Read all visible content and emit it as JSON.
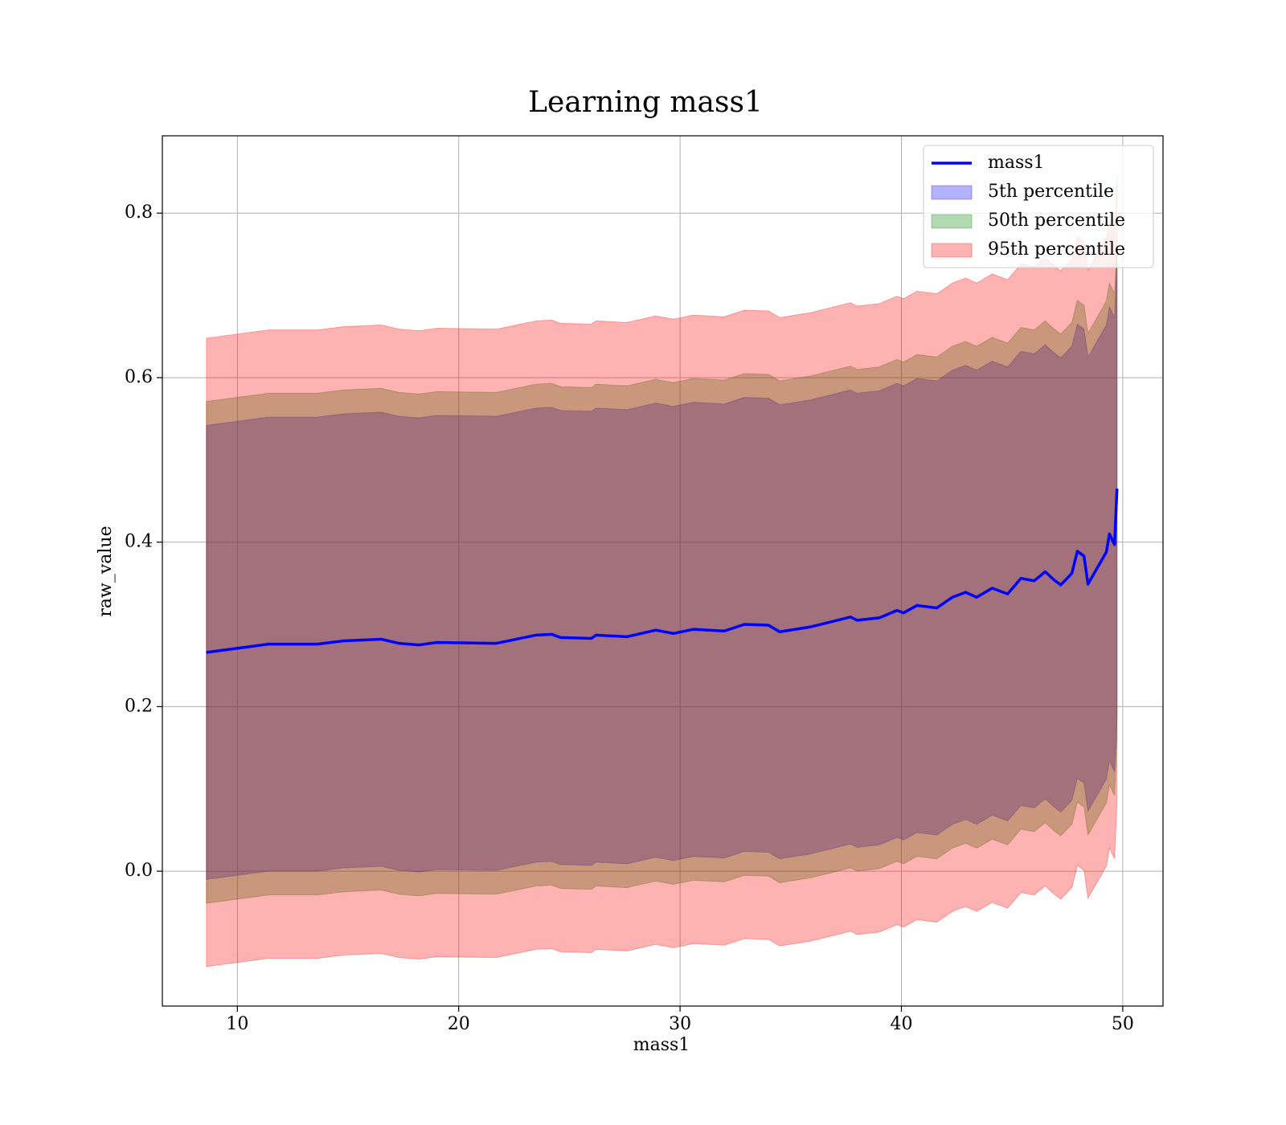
{
  "chart_data": {
    "type": "line",
    "title": "Learning mass1",
    "xlabel": "mass1",
    "ylabel": "raw_value",
    "x": [
      8.6,
      11.4,
      13.6,
      14.8,
      16.5,
      17.3,
      18.2,
      19.0,
      21.7,
      23.5,
      24.2,
      24.6,
      26.0,
      26.2,
      27.6,
      28.9,
      29.7,
      30.6,
      32.0,
      32.9,
      34.0,
      34.5,
      35.9,
      37.7,
      38.0,
      39.0,
      39.8,
      40.1,
      40.7,
      41.6,
      42.3,
      42.9,
      43.4,
      44.1,
      44.8,
      45.4,
      46.0,
      46.5,
      46.9,
      47.2,
      47.7,
      47.95,
      48.25,
      48.43,
      49.26,
      49.4,
      49.63,
      49.74
    ],
    "series": [
      {
        "name": "mass1",
        "color": "#0000ff",
        "values": [
          0.266,
          0.276,
          0.276,
          0.28,
          0.282,
          0.277,
          0.275,
          0.278,
          0.277,
          0.287,
          0.288,
          0.284,
          0.283,
          0.287,
          0.285,
          0.293,
          0.289,
          0.294,
          0.292,
          0.3,
          0.299,
          0.291,
          0.297,
          0.309,
          0.305,
          0.308,
          0.317,
          0.314,
          0.323,
          0.32,
          0.333,
          0.339,
          0.333,
          0.344,
          0.337,
          0.356,
          0.353,
          0.364,
          0.354,
          0.348,
          0.362,
          0.389,
          0.383,
          0.349,
          0.388,
          0.41,
          0.397,
          0.465
        ]
      }
    ],
    "bands": [
      {
        "name": "5th percentile",
        "color": "#0000ff",
        "alpha": 0.3,
        "upper": [
          0.542,
          0.552,
          0.552,
          0.556,
          0.558,
          0.553,
          0.551,
          0.554,
          0.553,
          0.563,
          0.564,
          0.56,
          0.559,
          0.563,
          0.561,
          0.569,
          0.565,
          0.57,
          0.568,
          0.576,
          0.575,
          0.567,
          0.573,
          0.585,
          0.581,
          0.584,
          0.593,
          0.59,
          0.599,
          0.596,
          0.609,
          0.615,
          0.609,
          0.62,
          0.613,
          0.632,
          0.629,
          0.64,
          0.63,
          0.624,
          0.638,
          0.665,
          0.659,
          0.625,
          0.664,
          0.686,
          0.673,
          0.741
        ],
        "lower": [
          -0.01,
          0.0,
          0.0,
          0.004,
          0.006,
          0.001,
          -0.001,
          0.002,
          0.001,
          0.011,
          0.012,
          0.008,
          0.007,
          0.011,
          0.009,
          0.017,
          0.013,
          0.018,
          0.016,
          0.024,
          0.023,
          0.015,
          0.021,
          0.033,
          0.029,
          0.032,
          0.041,
          0.038,
          0.047,
          0.044,
          0.057,
          0.063,
          0.057,
          0.068,
          0.061,
          0.08,
          0.077,
          0.088,
          0.078,
          0.072,
          0.086,
          0.113,
          0.107,
          0.073,
          0.112,
          0.134,
          0.121,
          0.189
        ]
      },
      {
        "name": "50th percentile",
        "color": "#008000",
        "alpha": 0.3,
        "upper": [
          0.571,
          0.581,
          0.581,
          0.585,
          0.587,
          0.582,
          0.58,
          0.583,
          0.582,
          0.592,
          0.593,
          0.589,
          0.588,
          0.592,
          0.59,
          0.598,
          0.594,
          0.599,
          0.597,
          0.605,
          0.604,
          0.596,
          0.602,
          0.614,
          0.61,
          0.613,
          0.622,
          0.619,
          0.628,
          0.625,
          0.638,
          0.644,
          0.638,
          0.649,
          0.642,
          0.661,
          0.658,
          0.669,
          0.659,
          0.653,
          0.667,
          0.694,
          0.688,
          0.654,
          0.693,
          0.715,
          0.702,
          0.77
        ],
        "lower": [
          -0.039,
          -0.029,
          -0.029,
          -0.025,
          -0.023,
          -0.028,
          -0.03,
          -0.027,
          -0.028,
          -0.018,
          -0.017,
          -0.021,
          -0.022,
          -0.018,
          -0.02,
          -0.012,
          -0.016,
          -0.011,
          -0.013,
          -0.005,
          -0.006,
          -0.014,
          -0.008,
          0.004,
          0.0,
          0.003,
          0.012,
          0.009,
          0.018,
          0.015,
          0.028,
          0.034,
          0.028,
          0.039,
          0.032,
          0.051,
          0.048,
          0.059,
          0.049,
          0.043,
          0.057,
          0.084,
          0.078,
          0.044,
          0.083,
          0.105,
          0.092,
          0.16
        ]
      },
      {
        "name": "95th percentile",
        "color": "#ff0000",
        "alpha": 0.3,
        "upper": [
          0.648,
          0.658,
          0.658,
          0.662,
          0.664,
          0.659,
          0.657,
          0.66,
          0.659,
          0.669,
          0.67,
          0.666,
          0.665,
          0.669,
          0.667,
          0.675,
          0.671,
          0.676,
          0.674,
          0.682,
          0.681,
          0.673,
          0.679,
          0.691,
          0.687,
          0.69,
          0.699,
          0.696,
          0.705,
          0.702,
          0.715,
          0.721,
          0.715,
          0.726,
          0.719,
          0.738,
          0.735,
          0.746,
          0.736,
          0.73,
          0.744,
          0.771,
          0.765,
          0.731,
          0.77,
          0.792,
          0.779,
          0.847
        ],
        "lower": [
          -0.116,
          -0.106,
          -0.106,
          -0.102,
          -0.1,
          -0.105,
          -0.107,
          -0.104,
          -0.105,
          -0.095,
          -0.094,
          -0.098,
          -0.099,
          -0.095,
          -0.097,
          -0.089,
          -0.093,
          -0.088,
          -0.09,
          -0.082,
          -0.083,
          -0.091,
          -0.085,
          -0.073,
          -0.077,
          -0.074,
          -0.065,
          -0.068,
          -0.059,
          -0.062,
          -0.049,
          -0.043,
          -0.049,
          -0.038,
          -0.045,
          -0.026,
          -0.029,
          -0.018,
          -0.028,
          -0.034,
          -0.02,
          0.007,
          0.001,
          -0.033,
          0.006,
          0.028,
          0.015,
          0.083
        ]
      }
    ],
    "xlim": [
      6.61,
      51.82
    ],
    "xticks": [
      10,
      20,
      30,
      40,
      50
    ],
    "ylim": [
      -0.164,
      0.894
    ],
    "yticks": [
      {
        "value": 0,
        "label": "0.0"
      },
      0.2,
      0.4,
      0.6,
      0.8
    ],
    "grid": true,
    "legend": "upper right"
  }
}
